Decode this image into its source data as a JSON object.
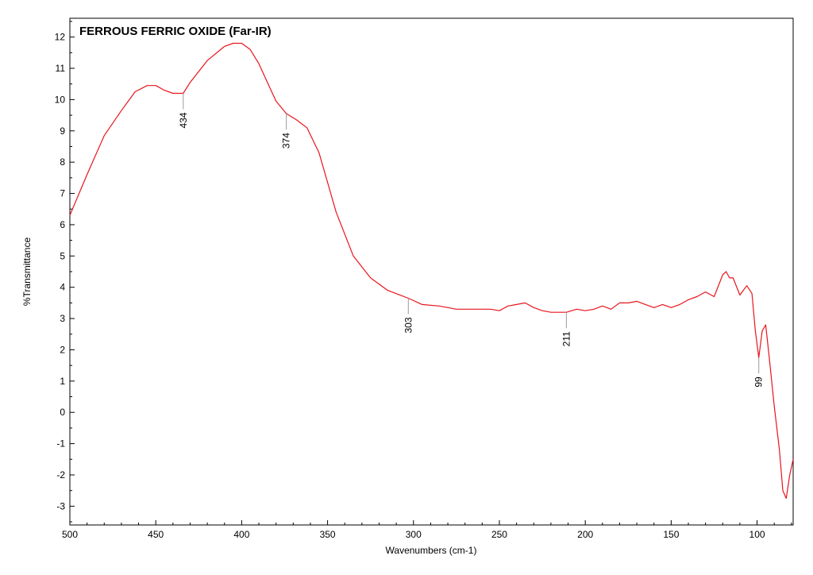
{
  "chart_data": {
    "type": "line",
    "title": "FERROUS FERRIC OXIDE (Far-IR)",
    "xlabel": "Wavenumbers (cm-1)",
    "ylabel": "%Transmittance",
    "xlim": [
      500,
      79
    ],
    "ylim": [
      -3.6,
      12.6
    ],
    "x_reversed": true,
    "x_ticks": [
      500,
      450,
      400,
      350,
      300,
      250,
      200,
      150,
      100
    ],
    "y_ticks": [
      -3,
      -2,
      -1,
      0,
      1,
      2,
      3,
      4,
      5,
      6,
      7,
      8,
      9,
      10,
      11,
      12
    ],
    "grid": false,
    "series": [
      {
        "color": "#e8141c",
        "x": [
          500,
          490,
          480,
          470,
          462,
          455,
          450,
          445,
          440,
          434,
          430,
          420,
          410,
          405,
          400,
          395,
          390,
          385,
          380,
          374,
          368,
          362,
          355,
          345,
          335,
          325,
          315,
          303,
          295,
          285,
          275,
          265,
          255,
          250,
          245,
          240,
          235,
          230,
          225,
          220,
          211,
          205,
          200,
          195,
          190,
          185,
          180,
          175,
          170,
          165,
          160,
          155,
          150,
          145,
          140,
          135,
          130,
          125,
          120,
          118,
          116,
          114,
          110,
          106,
          103,
          101,
          99,
          97,
          95,
          93,
          90,
          87,
          85,
          83,
          81,
          79
        ],
        "y": [
          6.3,
          7.6,
          8.85,
          9.65,
          10.25,
          10.45,
          10.45,
          10.3,
          10.2,
          10.2,
          10.55,
          11.25,
          11.7,
          11.8,
          11.8,
          11.6,
          11.15,
          10.55,
          9.95,
          9.55,
          9.35,
          9.1,
          8.3,
          6.4,
          5.0,
          4.3,
          3.9,
          3.65,
          3.45,
          3.4,
          3.3,
          3.3,
          3.3,
          3.25,
          3.4,
          3.45,
          3.5,
          3.35,
          3.25,
          3.2,
          3.2,
          3.3,
          3.25,
          3.3,
          3.4,
          3.3,
          3.5,
          3.5,
          3.55,
          3.45,
          3.35,
          3.45,
          3.35,
          3.45,
          3.6,
          3.7,
          3.85,
          3.7,
          4.4,
          4.5,
          4.3,
          4.3,
          3.75,
          4.05,
          3.8,
          2.6,
          1.75,
          2.6,
          2.8,
          1.8,
          0.2,
          -1.2,
          -2.5,
          -2.75,
          -2.0,
          -1.5
        ]
      }
    ],
    "peak_labels": [
      {
        "text": "434",
        "x": 434,
        "y": 10.2
      },
      {
        "text": "374",
        "x": 374,
        "y": 9.55
      },
      {
        "text": "303",
        "x": 303,
        "y": 3.65
      },
      {
        "text": "211",
        "x": 211,
        "y": 3.2
      },
      {
        "text": "99",
        "x": 99,
        "y": 1.75
      }
    ]
  }
}
